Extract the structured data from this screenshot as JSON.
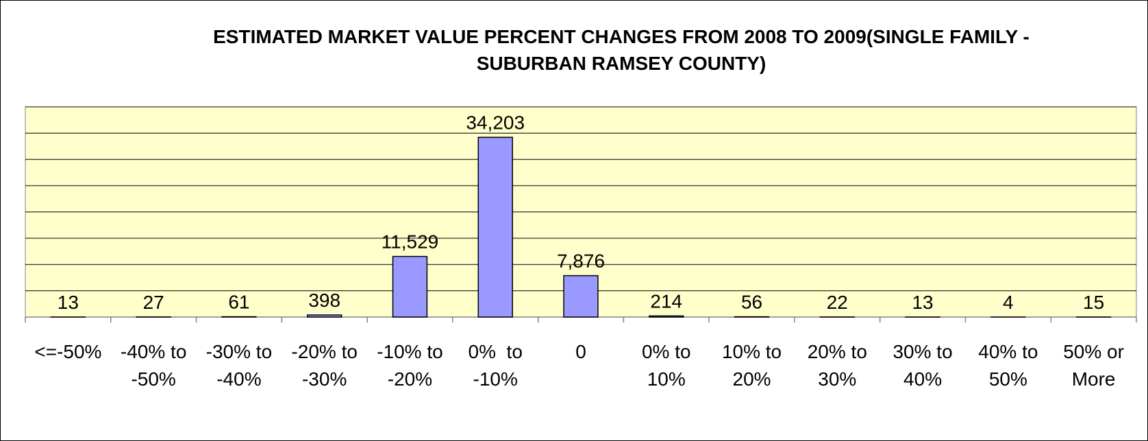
{
  "chart_data": {
    "type": "bar",
    "title": "ESTIMATED MARKET VALUE PERCENT CHANGES FROM 2008 TO 2009(SINGLE FAMILY - SUBURBAN RAMSEY COUNTY)",
    "categories": [
      "<=-50%",
      "-40% to -50%",
      "-30% to -40%",
      "-20% to -30%",
      "-10% to -20%",
      "0%  to -10%",
      "0",
      "0% to 10%",
      "10% to 20%",
      "20% to 30%",
      "30% to 40%",
      "40% to 50%",
      "50% or More"
    ],
    "values": [
      13,
      27,
      61,
      398,
      11529,
      34203,
      7876,
      214,
      56,
      22,
      13,
      4,
      15
    ],
    "value_labels": [
      "13",
      "27",
      "61",
      "398",
      "11,529",
      "34,203",
      "7,876",
      "214",
      "56",
      "22",
      "13",
      "4",
      "15"
    ],
    "color": "#9999ff",
    "ylim": [
      0,
      40000
    ],
    "yticks": [
      0,
      5000,
      10000,
      15000,
      20000,
      25000,
      30000,
      35000,
      40000
    ],
    "grid": true
  }
}
